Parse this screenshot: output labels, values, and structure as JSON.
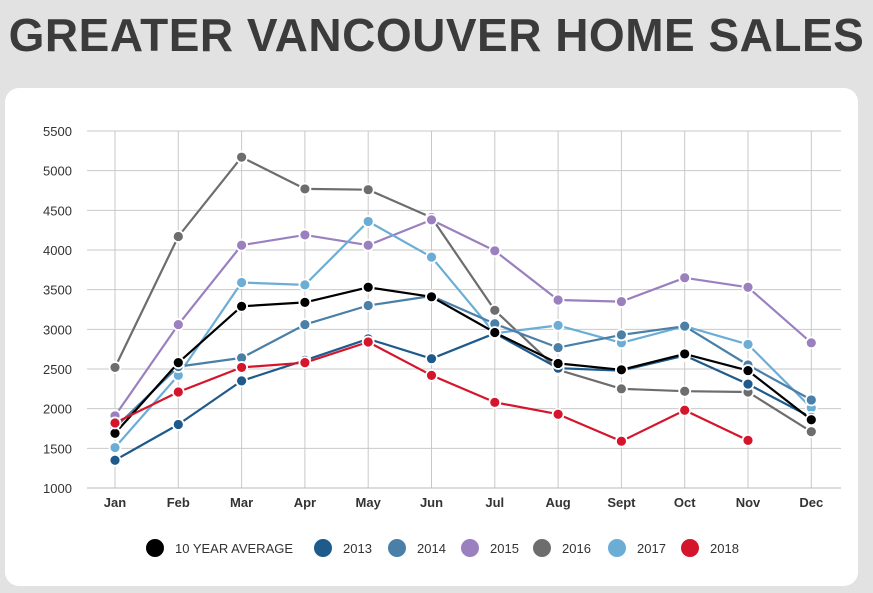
{
  "title": "GREATER VANCOUVER HOME SALES",
  "chart_data": {
    "type": "line",
    "title": "GREATER VANCOUVER HOME SALES",
    "xlabel": "",
    "ylabel": "",
    "categories": [
      "Jan",
      "Feb",
      "Mar",
      "Apr",
      "May",
      "Jun",
      "Jul",
      "Aug",
      "Sept",
      "Oct",
      "Nov",
      "Dec"
    ],
    "ylim": [
      1000,
      5500
    ],
    "yticks": [
      1000,
      1500,
      2000,
      2500,
      3000,
      3500,
      4000,
      4500,
      5000,
      5500
    ],
    "grid": true,
    "legend_position": "bottom",
    "series": [
      {
        "name": "2016",
        "color": "#6d6d6d",
        "values": [
          2520,
          4170,
          5170,
          4770,
          4760,
          4410,
          3240,
          2490,
          2250,
          2220,
          2210,
          1710
        ]
      },
      {
        "name": "2015",
        "color": "#9b80c0",
        "values": [
          1910,
          3060,
          4060,
          4190,
          4060,
          4380,
          3990,
          3370,
          3350,
          3650,
          3530,
          2830
        ]
      },
      {
        "name": "2017",
        "color": "#6cadd6",
        "values": [
          1510,
          2420,
          3590,
          3560,
          4360,
          3910,
          2950,
          3050,
          2830,
          3040,
          2810,
          2010
        ]
      },
      {
        "name": "2014",
        "color": "#4a7fa8",
        "values": [
          1760,
          2530,
          2640,
          3060,
          3300,
          3420,
          3070,
          2770,
          2930,
          3040,
          2550,
          2110
        ]
      },
      {
        "name": "2013",
        "color": "#1f5a8c",
        "values": [
          1350,
          1800,
          2350,
          2610,
          2880,
          2630,
          2950,
          2510,
          2480,
          2670,
          2310,
          1890
        ]
      },
      {
        "name": "10 YEAR AVERAGE",
        "color": "#000000",
        "values": [
          1690,
          2580,
          3290,
          3340,
          3530,
          3410,
          2960,
          2570,
          2490,
          2690,
          2480,
          1860
        ]
      },
      {
        "name": "2018",
        "color": "#d4152c",
        "values": [
          1820,
          2210,
          2520,
          2580,
          2840,
          2420,
          2080,
          1930,
          1590,
          1980,
          1600,
          null
        ]
      }
    ],
    "legend_order": [
      "10 YEAR AVERAGE",
      "2013",
      "2014",
      "2015",
      "2016",
      "2017",
      "2018"
    ]
  }
}
